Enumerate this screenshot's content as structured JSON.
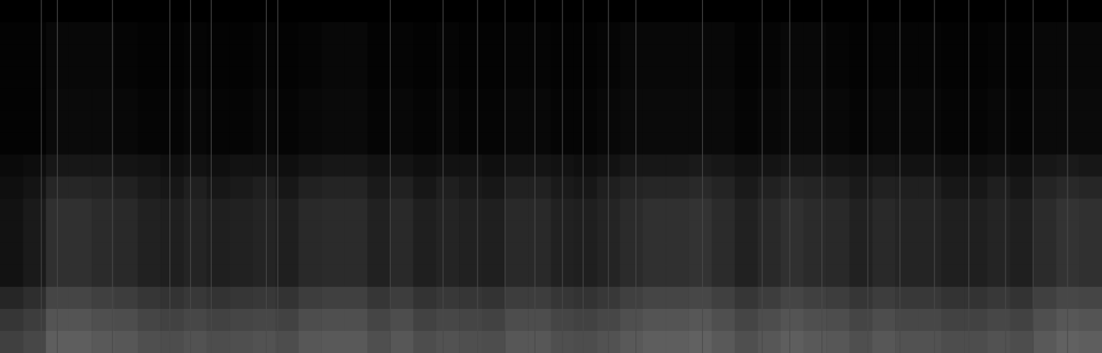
{
  "chart_data": {
    "type": "heatmap",
    "tick_labels": false,
    "grid": false,
    "xlim": [
      0,
      48
    ],
    "ylim": [
      0,
      16
    ],
    "value_range": [
      0,
      1
    ],
    "cells": [
      [
        0,
        0,
        0,
        0,
        0,
        0,
        0,
        0,
        0,
        0,
        0,
        0,
        0,
        0,
        0,
        0,
        0,
        0,
        0,
        0,
        0,
        0,
        0,
        0,
        0,
        0,
        0,
        0,
        0,
        0,
        0,
        0,
        0,
        0,
        0,
        0,
        0,
        0,
        0,
        0,
        0,
        0,
        0,
        0,
        0,
        0,
        0,
        0
      ],
      [
        0.01,
        0.01,
        0.03,
        0.03,
        0.03,
        0.02,
        0.01,
        0.01,
        0.02,
        0.01,
        0.01,
        0.02,
        0.01,
        0.02,
        0.03,
        0.03,
        0.01,
        0.02,
        0.01,
        0.02,
        0.01,
        0.01,
        0.02,
        0.02,
        0.01,
        0.01,
        0.02,
        0.03,
        0.03,
        0.03,
        0.03,
        0.03,
        0.01,
        0.02,
        0.03,
        0.03,
        0.02,
        0.01,
        0.02,
        0.02,
        0.02,
        0.01,
        0.01,
        0.02,
        0.01,
        0.03,
        0.03,
        0.03
      ],
      [
        0.01,
        0.01,
        0.03,
        0.03,
        0.03,
        0.02,
        0.01,
        0.01,
        0.02,
        0.01,
        0.01,
        0.02,
        0.01,
        0.02,
        0.03,
        0.03,
        0.01,
        0.02,
        0.01,
        0.02,
        0.01,
        0.01,
        0.02,
        0.02,
        0.01,
        0.01,
        0.02,
        0.03,
        0.03,
        0.03,
        0.03,
        0.03,
        0.01,
        0.02,
        0.03,
        0.03,
        0.02,
        0.01,
        0.02,
        0.02,
        0.02,
        0.01,
        0.01,
        0.02,
        0.01,
        0.03,
        0.03,
        0.03
      ],
      [
        0.01,
        0.01,
        0.03,
        0.03,
        0.03,
        0.02,
        0.01,
        0.01,
        0.02,
        0.01,
        0.01,
        0.02,
        0.01,
        0.02,
        0.03,
        0.03,
        0.01,
        0.02,
        0.01,
        0.02,
        0.01,
        0.01,
        0.02,
        0.02,
        0.01,
        0.01,
        0.02,
        0.03,
        0.03,
        0.03,
        0.03,
        0.03,
        0.01,
        0.02,
        0.03,
        0.03,
        0.02,
        0.01,
        0.02,
        0.02,
        0.02,
        0.01,
        0.01,
        0.02,
        0.01,
        0.03,
        0.03,
        0.03
      ],
      [
        0.01,
        0.01,
        0.04,
        0.04,
        0.04,
        0.03,
        0.02,
        0.02,
        0.03,
        0.02,
        0.02,
        0.03,
        0.02,
        0.03,
        0.04,
        0.04,
        0.02,
        0.03,
        0.02,
        0.03,
        0.02,
        0.02,
        0.03,
        0.03,
        0.02,
        0.02,
        0.03,
        0.04,
        0.04,
        0.04,
        0.04,
        0.04,
        0.02,
        0.03,
        0.04,
        0.04,
        0.03,
        0.02,
        0.03,
        0.03,
        0.03,
        0.02,
        0.02,
        0.03,
        0.02,
        0.04,
        0.04,
        0.04
      ],
      [
        0.01,
        0.01,
        0.04,
        0.04,
        0.04,
        0.03,
        0.02,
        0.02,
        0.03,
        0.02,
        0.02,
        0.03,
        0.02,
        0.03,
        0.04,
        0.04,
        0.02,
        0.03,
        0.02,
        0.03,
        0.02,
        0.02,
        0.03,
        0.03,
        0.02,
        0.02,
        0.03,
        0.04,
        0.04,
        0.04,
        0.04,
        0.04,
        0.02,
        0.03,
        0.04,
        0.04,
        0.03,
        0.02,
        0.03,
        0.03,
        0.03,
        0.02,
        0.02,
        0.03,
        0.02,
        0.04,
        0.04,
        0.04
      ],
      [
        0.01,
        0.01,
        0.04,
        0.04,
        0.04,
        0.03,
        0.02,
        0.02,
        0.03,
        0.02,
        0.02,
        0.03,
        0.02,
        0.03,
        0.04,
        0.04,
        0.02,
        0.03,
        0.02,
        0.03,
        0.02,
        0.02,
        0.03,
        0.03,
        0.02,
        0.02,
        0.03,
        0.04,
        0.04,
        0.04,
        0.04,
        0.04,
        0.02,
        0.03,
        0.04,
        0.04,
        0.03,
        0.02,
        0.03,
        0.03,
        0.03,
        0.02,
        0.02,
        0.03,
        0.02,
        0.04,
        0.04,
        0.04
      ],
      [
        0.04,
        0.05,
        0.09,
        0.09,
        0.09,
        0.08,
        0.07,
        0.06,
        0.07,
        0.06,
        0.07,
        0.07,
        0.06,
        0.08,
        0.09,
        0.09,
        0.07,
        0.08,
        0.06,
        0.07,
        0.07,
        0.06,
        0.08,
        0.08,
        0.07,
        0.06,
        0.07,
        0.09,
        0.09,
        0.09,
        0.1,
        0.09,
        0.07,
        0.08,
        0.09,
        0.09,
        0.08,
        0.07,
        0.08,
        0.07,
        0.07,
        0.06,
        0.06,
        0.07,
        0.06,
        0.09,
        0.1,
        0.09
      ],
      [
        0.06,
        0.08,
        0.15,
        0.15,
        0.14,
        0.13,
        0.1,
        0.09,
        0.12,
        0.09,
        0.1,
        0.12,
        0.09,
        0.13,
        0.14,
        0.14,
        0.1,
        0.13,
        0.09,
        0.12,
        0.1,
        0.09,
        0.13,
        0.13,
        0.1,
        0.09,
        0.12,
        0.14,
        0.15,
        0.15,
        0.16,
        0.14,
        0.1,
        0.13,
        0.15,
        0.14,
        0.13,
        0.1,
        0.13,
        0.12,
        0.12,
        0.09,
        0.09,
        0.12,
        0.09,
        0.14,
        0.16,
        0.15
      ],
      [
        0.07,
        0.1,
        0.19,
        0.19,
        0.17,
        0.16,
        0.13,
        0.12,
        0.14,
        0.12,
        0.13,
        0.14,
        0.12,
        0.16,
        0.17,
        0.17,
        0.13,
        0.16,
        0.12,
        0.14,
        0.13,
        0.12,
        0.16,
        0.16,
        0.13,
        0.12,
        0.14,
        0.17,
        0.19,
        0.19,
        0.2,
        0.17,
        0.13,
        0.16,
        0.19,
        0.17,
        0.16,
        0.13,
        0.16,
        0.14,
        0.14,
        0.12,
        0.12,
        0.14,
        0.12,
        0.17,
        0.2,
        0.19
      ],
      [
        0.07,
        0.1,
        0.19,
        0.19,
        0.17,
        0.16,
        0.13,
        0.12,
        0.14,
        0.12,
        0.13,
        0.14,
        0.12,
        0.16,
        0.17,
        0.17,
        0.13,
        0.16,
        0.12,
        0.14,
        0.13,
        0.12,
        0.16,
        0.16,
        0.13,
        0.12,
        0.14,
        0.17,
        0.19,
        0.19,
        0.2,
        0.17,
        0.13,
        0.16,
        0.19,
        0.17,
        0.16,
        0.13,
        0.16,
        0.14,
        0.14,
        0.12,
        0.12,
        0.14,
        0.12,
        0.17,
        0.2,
        0.19
      ],
      [
        0.07,
        0.1,
        0.19,
        0.19,
        0.17,
        0.16,
        0.13,
        0.12,
        0.14,
        0.12,
        0.13,
        0.14,
        0.12,
        0.16,
        0.17,
        0.17,
        0.13,
        0.16,
        0.12,
        0.14,
        0.13,
        0.12,
        0.16,
        0.16,
        0.13,
        0.12,
        0.14,
        0.17,
        0.19,
        0.19,
        0.2,
        0.17,
        0.13,
        0.16,
        0.19,
        0.17,
        0.16,
        0.13,
        0.16,
        0.14,
        0.14,
        0.12,
        0.12,
        0.14,
        0.12,
        0.17,
        0.2,
        0.19
      ],
      [
        0.07,
        0.1,
        0.19,
        0.19,
        0.17,
        0.16,
        0.13,
        0.12,
        0.14,
        0.12,
        0.13,
        0.14,
        0.12,
        0.16,
        0.17,
        0.17,
        0.13,
        0.16,
        0.12,
        0.14,
        0.13,
        0.12,
        0.16,
        0.16,
        0.13,
        0.12,
        0.14,
        0.17,
        0.19,
        0.19,
        0.2,
        0.17,
        0.13,
        0.16,
        0.19,
        0.17,
        0.16,
        0.13,
        0.16,
        0.14,
        0.14,
        0.12,
        0.12,
        0.14,
        0.12,
        0.17,
        0.2,
        0.19
      ],
      [
        0.15,
        0.18,
        0.27,
        0.27,
        0.25,
        0.24,
        0.21,
        0.2,
        0.22,
        0.2,
        0.21,
        0.22,
        0.2,
        0.24,
        0.25,
        0.25,
        0.21,
        0.24,
        0.2,
        0.22,
        0.21,
        0.2,
        0.24,
        0.24,
        0.21,
        0.2,
        0.22,
        0.25,
        0.27,
        0.27,
        0.28,
        0.25,
        0.21,
        0.24,
        0.27,
        0.25,
        0.24,
        0.21,
        0.24,
        0.22,
        0.22,
        0.2,
        0.2,
        0.22,
        0.2,
        0.25,
        0.28,
        0.27
      ],
      [
        0.21,
        0.24,
        0.33,
        0.33,
        0.31,
        0.3,
        0.27,
        0.26,
        0.28,
        0.26,
        0.27,
        0.28,
        0.26,
        0.3,
        0.31,
        0.31,
        0.27,
        0.3,
        0.26,
        0.28,
        0.27,
        0.26,
        0.3,
        0.3,
        0.27,
        0.26,
        0.28,
        0.31,
        0.33,
        0.33,
        0.34,
        0.31,
        0.27,
        0.3,
        0.33,
        0.31,
        0.3,
        0.27,
        0.3,
        0.28,
        0.28,
        0.26,
        0.26,
        0.28,
        0.26,
        0.31,
        0.34,
        0.33
      ],
      [
        0.25,
        0.28,
        0.37,
        0.37,
        0.35,
        0.34,
        0.31,
        0.3,
        0.32,
        0.3,
        0.31,
        0.32,
        0.3,
        0.34,
        0.35,
        0.35,
        0.31,
        0.34,
        0.3,
        0.32,
        0.31,
        0.3,
        0.34,
        0.34,
        0.31,
        0.3,
        0.32,
        0.35,
        0.37,
        0.37,
        0.38,
        0.35,
        0.31,
        0.34,
        0.37,
        0.35,
        0.34,
        0.31,
        0.34,
        0.32,
        0.32,
        0.3,
        0.3,
        0.32,
        0.3,
        0.35,
        0.38,
        0.37
      ]
    ],
    "transients": [
      1.8,
      2.5,
      4.9,
      7.4,
      8.3,
      9.2,
      11.6,
      12.1,
      17.0,
      19.3,
      20.8,
      22.0,
      23.3,
      24.5,
      25.4,
      26.5,
      27.7,
      30.6,
      33.2,
      34.4,
      35.8,
      37.8,
      39.2,
      40.7,
      42.2,
      43.8,
      45.0,
      46.5
    ]
  }
}
